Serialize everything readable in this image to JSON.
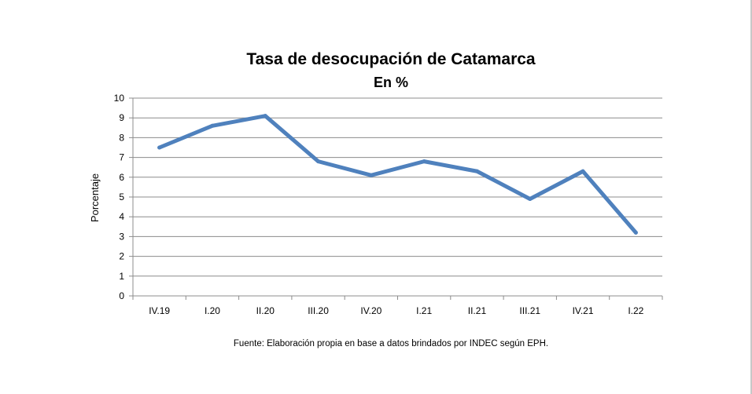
{
  "chart_data": {
    "type": "line",
    "title": "Tasa de desocupación de Catamarca",
    "subtitle": "En %",
    "xlabel": "",
    "ylabel": "Porcentaje",
    "categories": [
      "IV.19",
      "I.20",
      "II.20",
      "III.20",
      "IV.20",
      "I.21",
      "II.21",
      "III.21",
      "IV.21",
      "I.22"
    ],
    "series": [
      {
        "values": [
          7.5,
          8.6,
          9.1,
          6.8,
          6.1,
          6.8,
          6.3,
          4.9,
          6.3,
          3.2
        ],
        "color": "#4f81bd"
      }
    ],
    "ylim": [
      0,
      10
    ],
    "yticks": [
      "0",
      "1",
      "2",
      "3",
      "4",
      "5",
      "6",
      "7",
      "8",
      "9",
      "10"
    ],
    "grid": true,
    "legend": "none",
    "source": "Fuente:  Elaboración propia en base a datos brindados por INDEC según EPH."
  }
}
